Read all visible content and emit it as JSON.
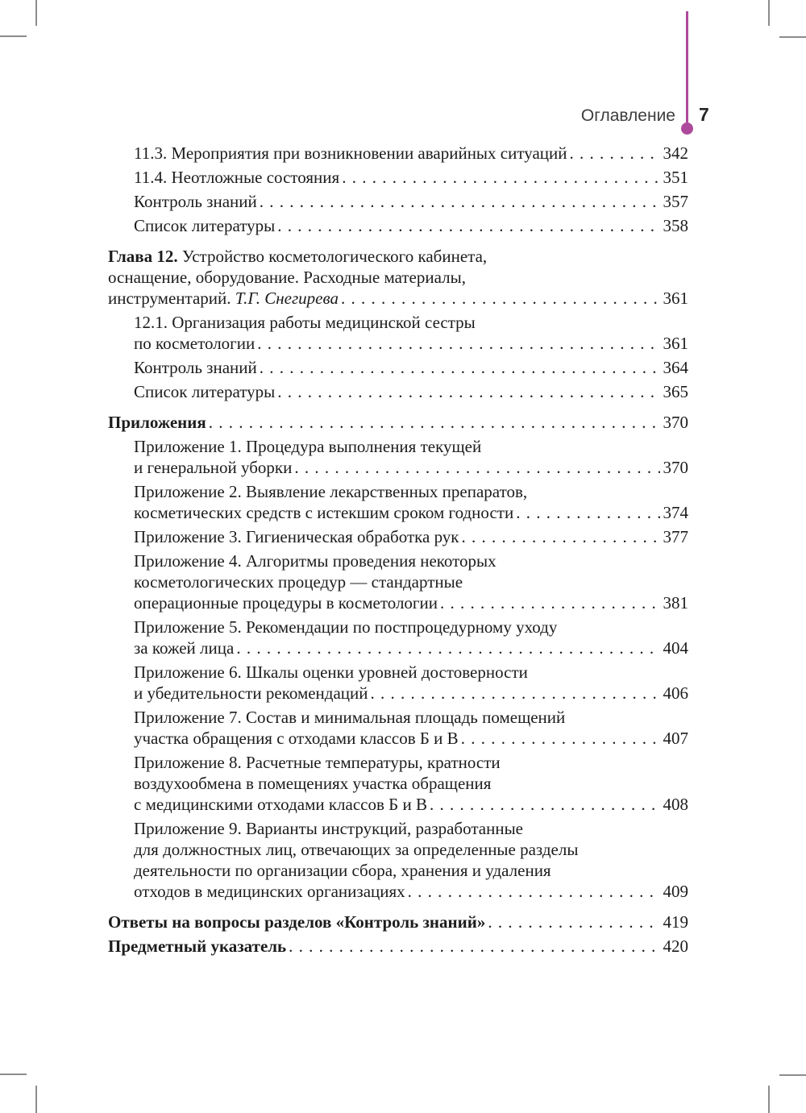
{
  "theme": {
    "accent_color": "#ad4a9c",
    "cropmark_color": "#8c8c8c"
  },
  "header": {
    "title": "Оглавление",
    "page_number": "7"
  },
  "toc": {
    "entries": [
      {
        "level": 2,
        "page": "342",
        "lines": [
          [
            {
              "text": "11.3. Мероприятия при возникновении аварийных ситуаций"
            }
          ]
        ]
      },
      {
        "level": 2,
        "page": "351",
        "lines": [
          [
            {
              "text": "11.4. Неотложные состояния"
            }
          ]
        ]
      },
      {
        "level": 2,
        "page": "357",
        "lines": [
          [
            {
              "text": "Контроль знаний"
            }
          ]
        ]
      },
      {
        "level": 2,
        "page": "358",
        "lines": [
          [
            {
              "text": "Список литературы"
            }
          ]
        ]
      },
      {
        "level": 1,
        "page": "361",
        "gap": "section",
        "lines": [
          [
            {
              "text": "Глава 12.",
              "style": "bold"
            },
            {
              "text": " Устройство косметологического кабинета,"
            }
          ],
          [
            {
              "text": "оснащение, оборудование. Расходные материалы,"
            }
          ],
          [
            {
              "text": "инструментарий. "
            },
            {
              "text": "Т.Г. Снегирева",
              "style": "italic"
            }
          ]
        ]
      },
      {
        "level": 2,
        "page": "361",
        "lines": [
          [
            {
              "text": "12.1. Организация работы медицинской сестры"
            }
          ],
          [
            {
              "text": "по косметологии"
            }
          ]
        ]
      },
      {
        "level": 2,
        "page": "364",
        "lines": [
          [
            {
              "text": "Контроль знаний"
            }
          ]
        ]
      },
      {
        "level": 2,
        "page": "365",
        "lines": [
          [
            {
              "text": "Список литературы"
            }
          ]
        ]
      },
      {
        "level": 1,
        "page": "370",
        "gap": "section",
        "lines": [
          [
            {
              "text": "Приложения",
              "style": "bold"
            }
          ]
        ]
      },
      {
        "level": 2,
        "page": "370",
        "lines": [
          [
            {
              "text": "Приложение 1. Процедура выполнения текущей"
            }
          ],
          [
            {
              "text": "и генеральной уборки"
            }
          ]
        ]
      },
      {
        "level": 2,
        "page": "374",
        "lines": [
          [
            {
              "text": "Приложение 2. Выявление лекарственных препаратов,"
            }
          ],
          [
            {
              "text": "косметических средств с истекшим сроком годности"
            }
          ]
        ]
      },
      {
        "level": 2,
        "page": "377",
        "lines": [
          [
            {
              "text": "Приложение 3. Гигиеническая обработка рук"
            }
          ]
        ]
      },
      {
        "level": 2,
        "page": "381",
        "lines": [
          [
            {
              "text": "Приложение 4. Алгоритмы проведения некоторых"
            }
          ],
          [
            {
              "text": "косметологических процедур — стандартные"
            }
          ],
          [
            {
              "text": "операционные процедуры в косметологии"
            }
          ]
        ]
      },
      {
        "level": 2,
        "page": "404",
        "lines": [
          [
            {
              "text": "Приложение 5. Рекомендации по постпроцедурному уходу"
            }
          ],
          [
            {
              "text": "за кожей лица"
            }
          ]
        ]
      },
      {
        "level": 2,
        "page": "406",
        "lines": [
          [
            {
              "text": "Приложение 6. Шкалы оценки уровней достоверности"
            }
          ],
          [
            {
              "text": "и убедительности рекомендаций"
            }
          ]
        ]
      },
      {
        "level": 2,
        "page": "407",
        "lines": [
          [
            {
              "text": "Приложение 7. Состав и минимальная площадь помещений"
            }
          ],
          [
            {
              "text": "участка обращения с отходами классов Б и В"
            }
          ]
        ]
      },
      {
        "level": 2,
        "page": "408",
        "lines": [
          [
            {
              "text": "Приложение 8. Расчетные температуры, кратности"
            }
          ],
          [
            {
              "text": "воздухообмена в помещениях участка обращения"
            }
          ],
          [
            {
              "text": "с медицинскими отходами классов Б и В"
            }
          ]
        ]
      },
      {
        "level": 2,
        "page": "409",
        "lines": [
          [
            {
              "text": "Приложение 9. Варианты инструкций, разработанные"
            }
          ],
          [
            {
              "text": "для должностных лиц, отвечающих за определенные разделы"
            }
          ],
          [
            {
              "text": "деятельности по организации сбора, хранения и удаления"
            }
          ],
          [
            {
              "text": "отходов в медицинских организациях"
            }
          ]
        ]
      },
      {
        "level": 1,
        "page": "419",
        "gap": "section",
        "lines": [
          [
            {
              "text": "Ответы на вопросы разделов «Контроль знаний»",
              "style": "bold"
            }
          ]
        ]
      },
      {
        "level": 1,
        "page": "420",
        "lines": [
          [
            {
              "text": "Предметный указатель",
              "style": "bold"
            }
          ]
        ]
      }
    ]
  }
}
